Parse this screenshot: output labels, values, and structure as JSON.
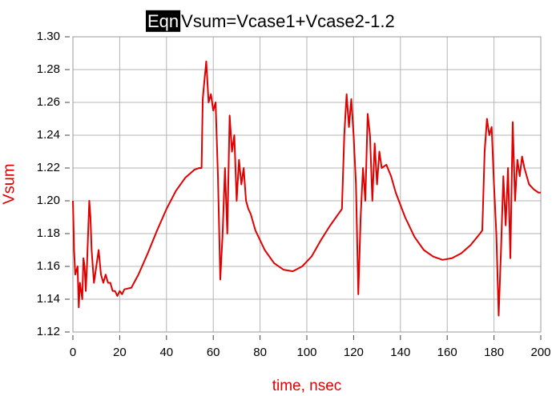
{
  "chart_data": {
    "type": "line",
    "title_tag": "Eqn",
    "title": "Vsum=Vcase1+Vcase2-1.2",
    "x_label": "time, nsec",
    "y_label": "Vsum",
    "color": "#e00000",
    "grid": true,
    "xlim": [
      0,
      200
    ],
    "xticks": [
      0,
      20,
      40,
      60,
      80,
      100,
      120,
      140,
      160,
      180,
      200
    ],
    "ylim": [
      1.12,
      1.3
    ],
    "yticks": [
      1.12,
      1.14,
      1.16,
      1.18,
      {
        "value": 1.2,
        "label": "1.20"
      },
      1.22,
      1.24,
      1.26,
      1.28,
      {
        "value": 1.3,
        "label": "1.30"
      }
    ],
    "x": [
      0,
      0.5,
      1,
      2,
      2.5,
      3,
      4,
      4.5,
      5,
      5.5,
      6,
      7,
      7.5,
      8,
      9,
      10,
      11,
      12,
      13,
      14,
      15,
      16,
      17,
      18,
      19,
      20,
      21,
      22,
      25,
      28,
      32,
      36,
      40,
      44,
      48,
      52,
      54,
      55,
      55.5,
      56,
      57,
      58,
      59,
      60,
      61,
      62,
      63,
      64,
      65,
      66,
      67,
      68,
      69,
      70,
      71,
      72,
      73,
      74,
      75,
      76,
      78,
      82,
      86,
      90,
      94,
      98,
      102,
      106,
      110,
      114,
      115,
      116,
      117,
      118,
      119,
      120,
      121,
      122,
      123,
      124,
      125,
      126,
      127,
      128,
      129,
      130,
      131,
      132,
      134,
      136,
      138,
      142,
      146,
      150,
      154,
      158,
      162,
      166,
      170,
      174,
      175,
      176,
      177,
      178,
      179,
      180,
      181,
      182,
      183,
      184,
      185,
      186,
      187,
      188,
      189,
      190,
      191,
      192,
      193,
      195,
      197,
      199,
      200
    ],
    "values": [
      1.2,
      1.17,
      1.155,
      1.16,
      1.135,
      1.15,
      1.14,
      1.165,
      1.16,
      1.145,
      1.16,
      1.2,
      1.19,
      1.17,
      1.15,
      1.16,
      1.17,
      1.155,
      1.15,
      1.155,
      1.15,
      1.15,
      1.145,
      1.145,
      1.142,
      1.145,
      1.143,
      1.146,
      1.147,
      1.155,
      1.168,
      1.182,
      1.195,
      1.206,
      1.214,
      1.219,
      1.22,
      1.22,
      1.262,
      1.27,
      1.285,
      1.26,
      1.265,
      1.255,
      1.26,
      1.215,
      1.152,
      1.18,
      1.22,
      1.18,
      1.252,
      1.23,
      1.24,
      1.2,
      1.225,
      1.21,
      1.22,
      1.2,
      1.195,
      1.192,
      1.182,
      1.17,
      1.162,
      1.158,
      1.157,
      1.16,
      1.166,
      1.176,
      1.185,
      1.193,
      1.195,
      1.24,
      1.265,
      1.245,
      1.262,
      1.24,
      1.21,
      1.143,
      1.19,
      1.22,
      1.2,
      1.253,
      1.24,
      1.2,
      1.235,
      1.21,
      1.23,
      1.22,
      1.222,
      1.215,
      1.205,
      1.19,
      1.178,
      1.17,
      1.166,
      1.164,
      1.165,
      1.168,
      1.173,
      1.18,
      1.182,
      1.23,
      1.25,
      1.24,
      1.245,
      1.21,
      1.18,
      1.13,
      1.17,
      1.215,
      1.185,
      1.22,
      1.165,
      1.248,
      1.2,
      1.225,
      1.215,
      1.227,
      1.22,
      1.21,
      1.207,
      1.205,
      1.205
    ]
  }
}
